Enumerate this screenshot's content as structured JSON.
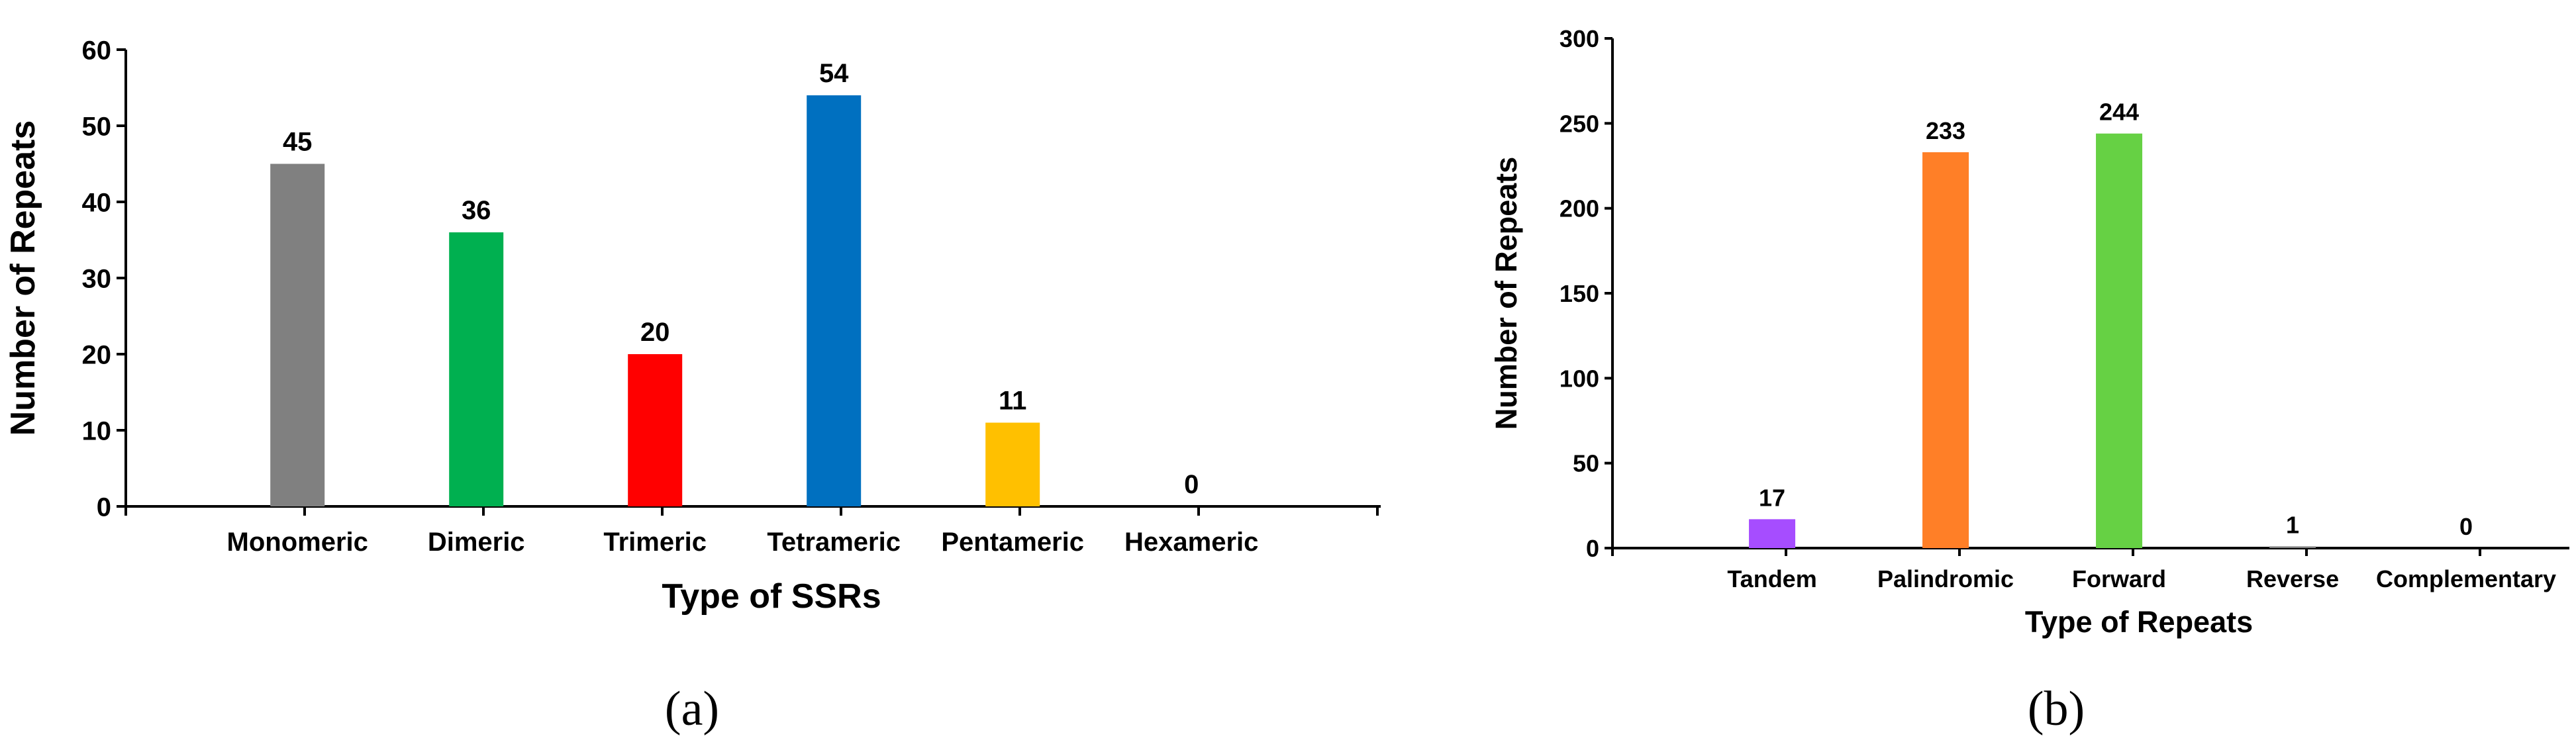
{
  "chart_data": [
    {
      "panel": "(a)",
      "type": "bar",
      "categories": [
        "Monomeric",
        "Dimeric",
        "Trimeric",
        "Tetrameric",
        "Pentameric",
        "Hexameric"
      ],
      "values": [
        45,
        36,
        20,
        54,
        11,
        0
      ],
      "colors": [
        "#808080",
        "#00b050",
        "#ff0000",
        "#0070c0",
        "#ffc000",
        "#7f7f7f"
      ],
      "title": "",
      "xlabel": "Type of SSRs",
      "ylabel": "Number of Repeats",
      "ylim": [
        0,
        60
      ],
      "yticks": [
        0,
        10,
        20,
        30,
        40,
        50,
        60
      ],
      "grid": false,
      "legend": "none"
    },
    {
      "panel": "(b)",
      "type": "bar",
      "categories": [
        "Tandem",
        "Palindromic",
        "Forward",
        "Reverse",
        "Complementary"
      ],
      "values": [
        17,
        233,
        244,
        1,
        0
      ],
      "colors": [
        "#a64dff",
        "#ff7f27",
        "#66d144",
        "#7f7f7f",
        "#7f7f7f"
      ],
      "title": "",
      "xlabel": "Type of Repeats",
      "ylabel": "Number of Repeats",
      "ylim": [
        0,
        300
      ],
      "yticks": [
        0,
        50,
        100,
        150,
        200,
        250,
        300
      ],
      "grid": false,
      "legend": "none"
    }
  ]
}
